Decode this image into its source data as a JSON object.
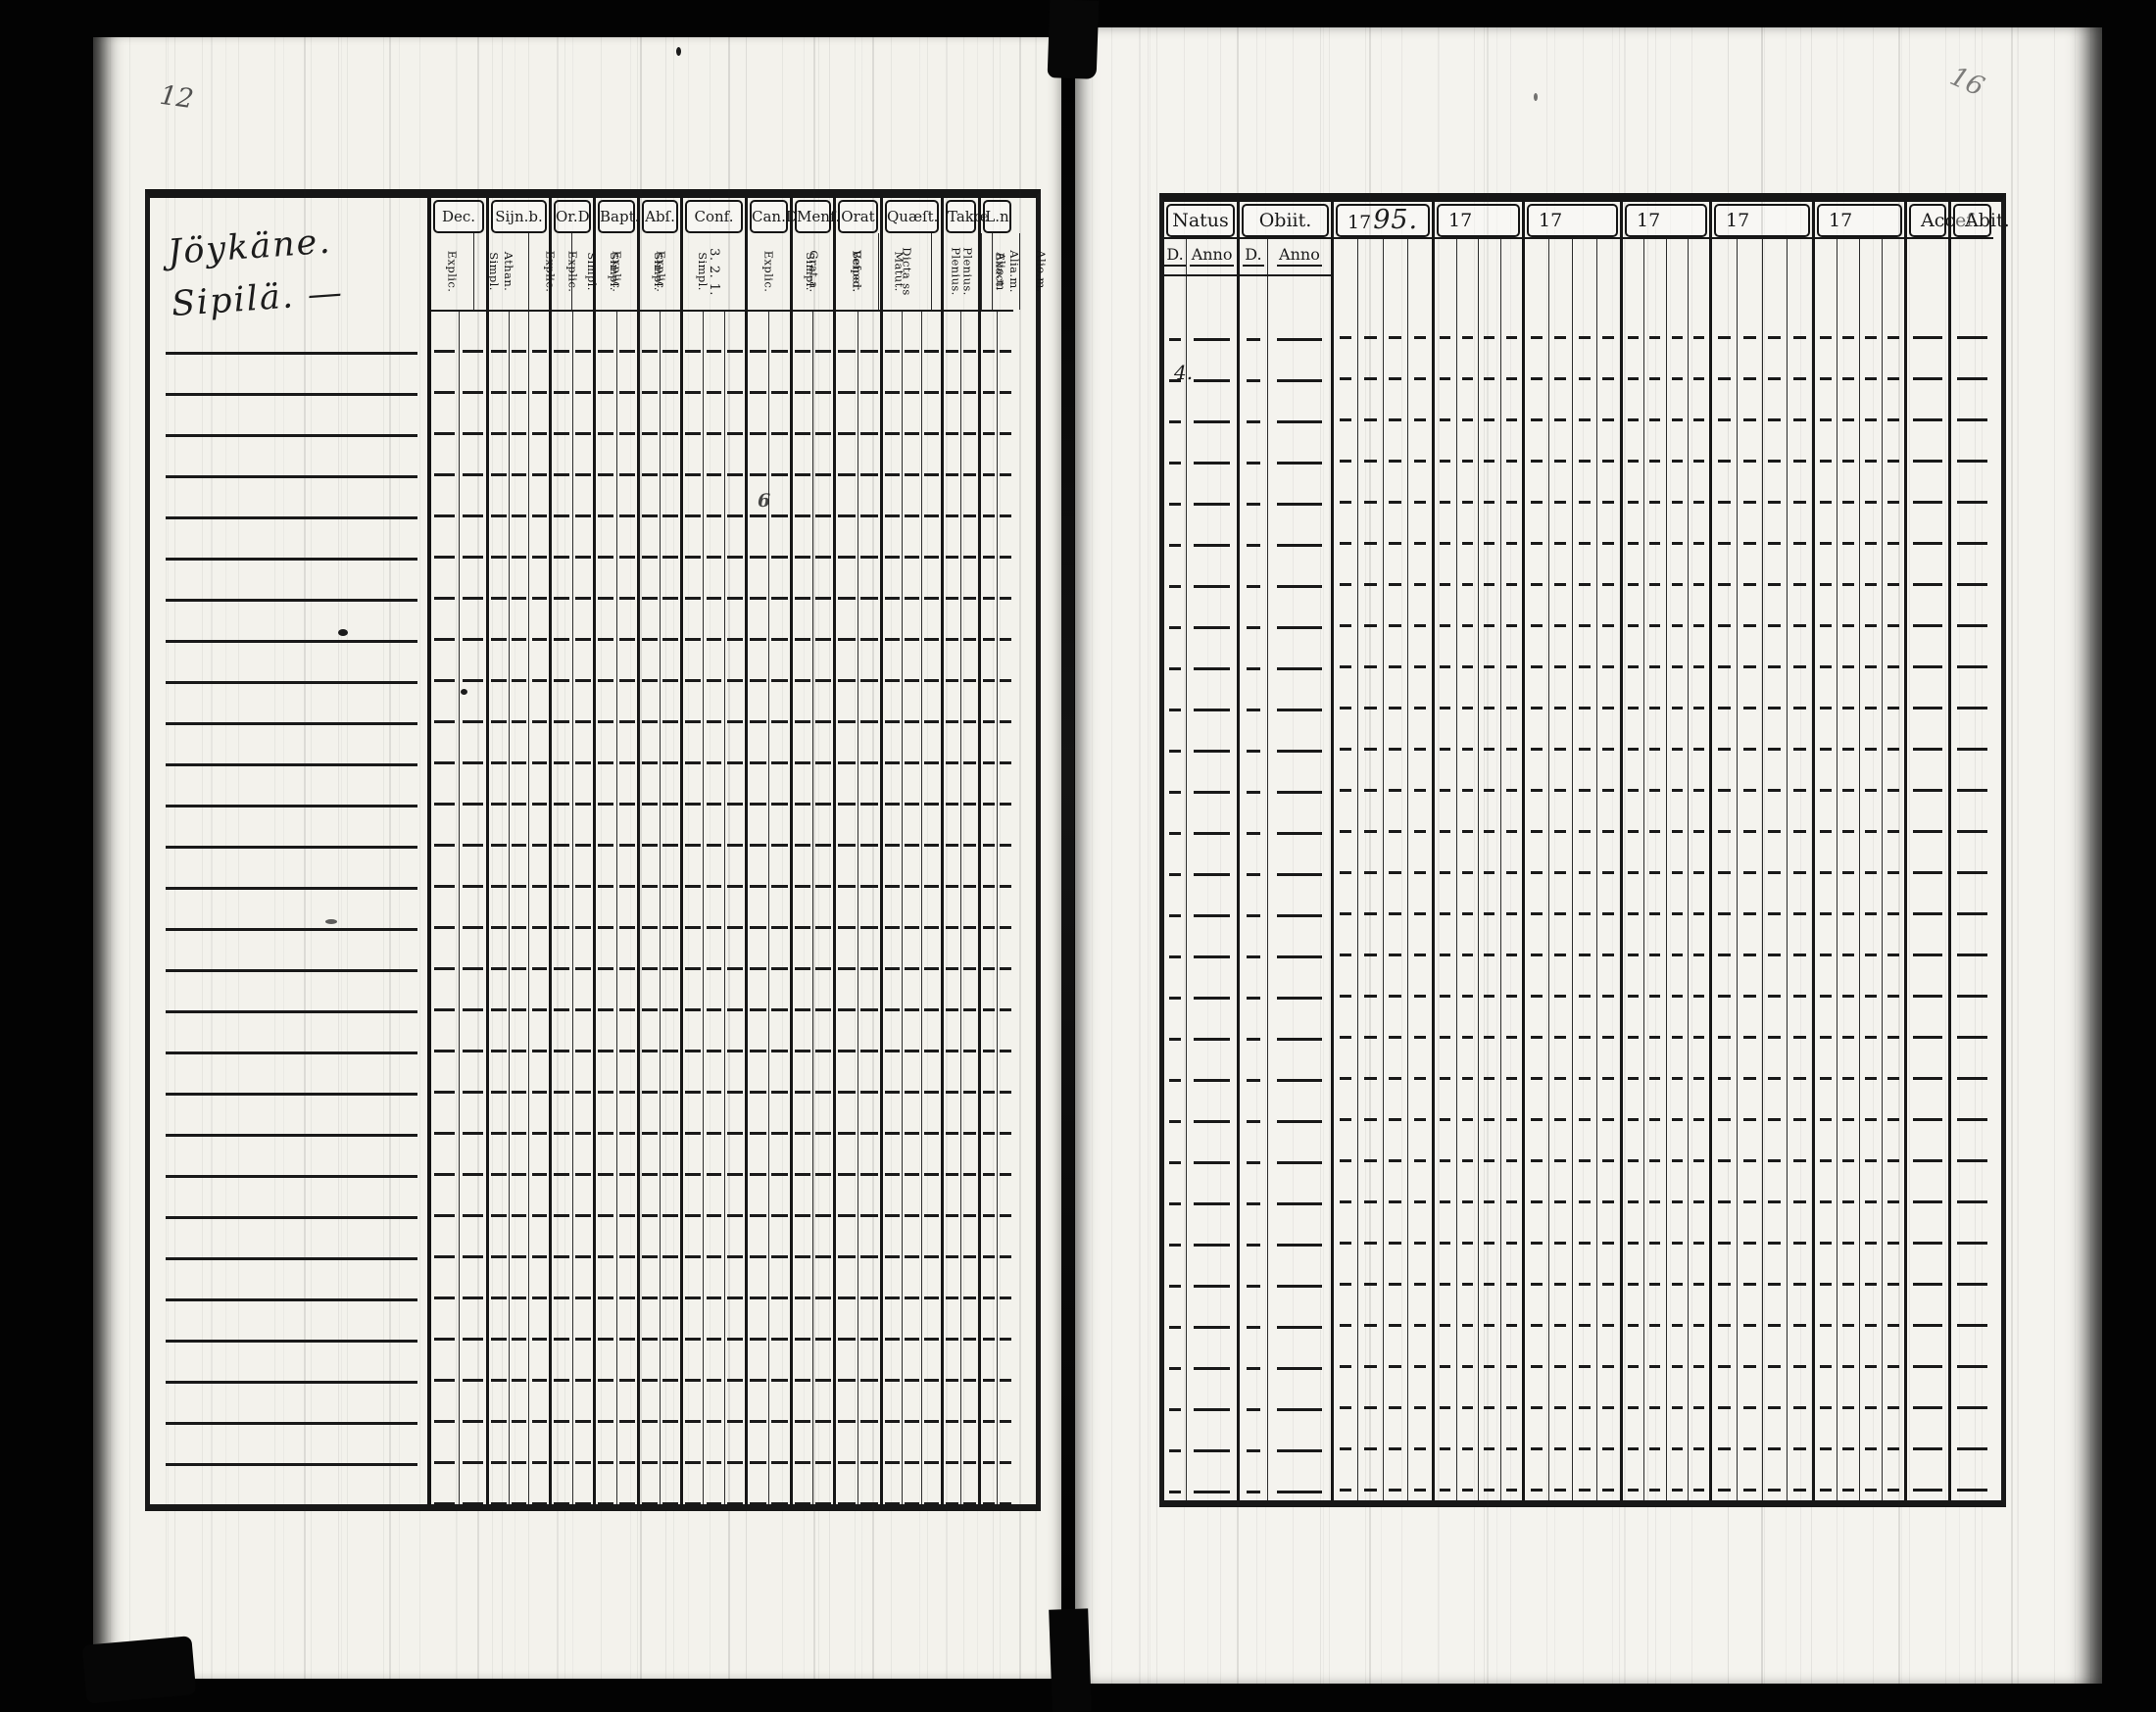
{
  "page_left": {
    "page_number": "12",
    "household_name": [
      "Jöykäne.",
      "Sipilä. —"
    ],
    "gutter_mark": "6",
    "columns": [
      {
        "label": "Dec.",
        "sub_labels": [
          "Explic.",
          "Simpl."
        ]
      },
      {
        "label": "Sijn.b.",
        "sub_labels": [
          "Athan.",
          "Explic.",
          "Simpl."
        ]
      },
      {
        "label": "Or.D",
        "sub_labels": [
          "Explic.",
          "Simpl."
        ]
      },
      {
        "label": "Bapt.",
        "sub_labels": [
          "Explic.",
          "Simpl."
        ]
      },
      {
        "label": "Abſ.",
        "sub_labels": [
          "Explic.",
          "Simpl."
        ]
      },
      {
        "label": "Conf.",
        "sub_labels": [
          "3. 2. 1."
        ]
      },
      {
        "label": "Can.D",
        "sub_labels": [
          "Explic.",
          "Simpl."
        ]
      },
      {
        "label": "Menſ.",
        "sub_labels": [
          "Grat.a.",
          "Bened."
        ]
      },
      {
        "label": "Orat",
        "sub_labels": [
          "Veſper.",
          "Matut."
        ]
      },
      {
        "label": "Quæſt.",
        "sub_labels": [
          "Dicta ss",
          "Plenius.",
          "Alio.m"
        ]
      },
      {
        "label": "Takœ",
        "sub_labels": [
          "Plenius.",
          "Alia.m."
        ]
      },
      {
        "label": "L.n",
        "sub_labels": [
          "Exact.",
          "Alio.m."
        ]
      }
    ]
  },
  "page_right": {
    "page_number": "16",
    "margin_mark": "4.",
    "columns": [
      {
        "label": "Natus",
        "sub_labels": [
          "D.",
          "Anno"
        ]
      },
      {
        "label": "Obiit.",
        "sub_labels": [
          "D.",
          "Anno"
        ]
      },
      {
        "label": "17",
        "handwritten_year": "95."
      },
      {
        "label": "17"
      },
      {
        "label": "17"
      },
      {
        "label": "17"
      },
      {
        "label": "17"
      },
      {
        "label": "17"
      },
      {
        "label": "Acceſ."
      },
      {
        "label": "Abit."
      }
    ]
  },
  "form": {
    "visible_row_count": 29
  }
}
